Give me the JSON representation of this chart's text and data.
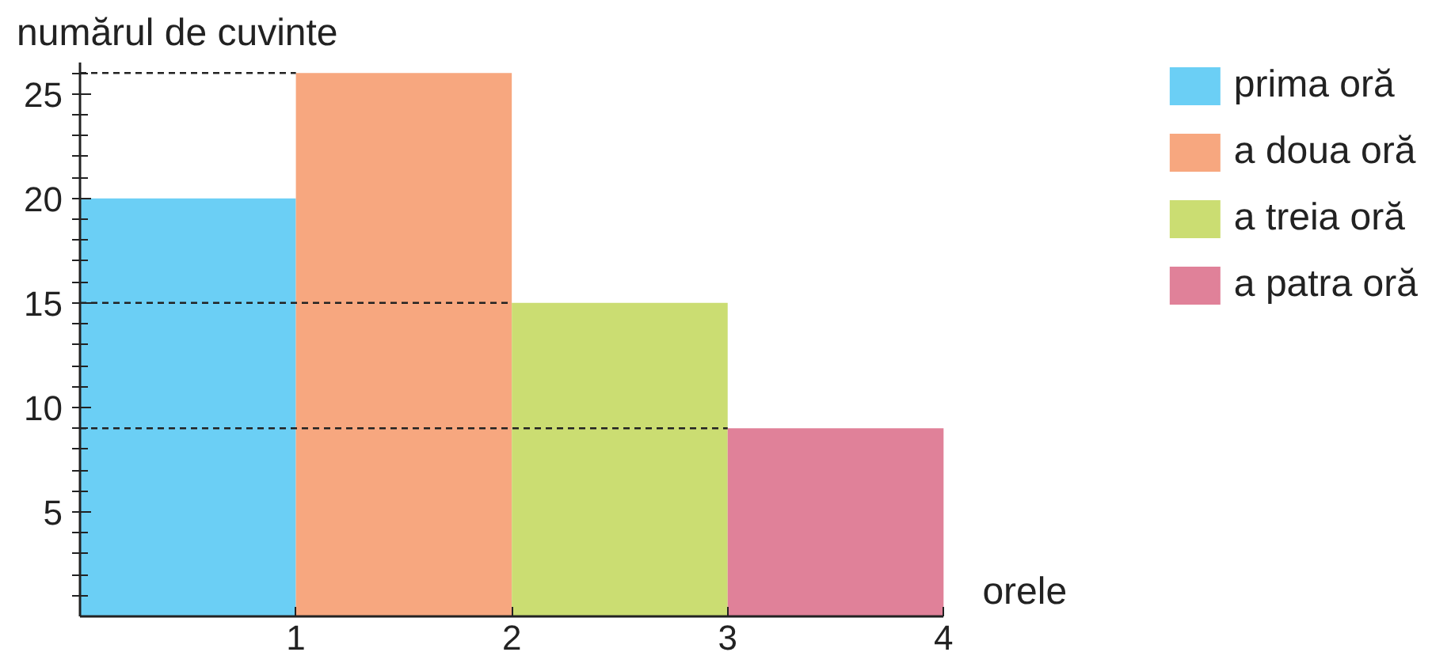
{
  "chart_data": {
    "type": "bar",
    "xlabel": "orele",
    "ylabel": "numărul de cuvinte",
    "x": [
      0.5,
      1.5,
      2.5,
      3.5
    ],
    "series": [
      {
        "name": "prima oră",
        "color": "#6bcff5",
        "values": [
          20,
          null,
          null,
          null
        ]
      },
      {
        "name": "a doua oră",
        "color": "#f7a77f",
        "values": [
          null,
          26,
          null,
          null
        ]
      },
      {
        "name": "a treia oră",
        "color": "#cbdd72",
        "values": [
          null,
          null,
          15,
          null
        ]
      },
      {
        "name": "a patra oră",
        "color": "#e08199",
        "values": [
          null,
          null,
          null,
          9
        ]
      }
    ],
    "xlim": [
      0,
      4
    ],
    "xticks": [
      1,
      2,
      3,
      4
    ],
    "ylim": [
      0,
      26.5
    ],
    "yticks": [
      {
        "value": 1,
        "label": null
      },
      {
        "value": 2,
        "label": null
      },
      {
        "value": 3,
        "label": null
      },
      {
        "value": 4,
        "label": null
      },
      5,
      {
        "value": 6,
        "label": null
      },
      {
        "value": 7,
        "label": null
      },
      {
        "value": 8,
        "label": null
      },
      {
        "value": 9,
        "label": null
      },
      10,
      {
        "value": 11,
        "label": null
      },
      {
        "value": 12,
        "label": null
      },
      {
        "value": 13,
        "label": null
      },
      {
        "value": 14,
        "label": null
      },
      15,
      {
        "value": 16,
        "label": null
      },
      {
        "value": 17,
        "label": null
      },
      {
        "value": 18,
        "label": null
      },
      {
        "value": 19,
        "label": null
      },
      20,
      {
        "value": 21,
        "label": null
      },
      {
        "value": 22,
        "label": null
      },
      {
        "value": 23,
        "label": null
      },
      {
        "value": 24,
        "label": null
      },
      25,
      {
        "value": 26,
        "label": null
      }
    ],
    "ref_lines": [
      {
        "axis": "y",
        "value": 26,
        "label": null,
        "line_style": "dashed",
        "color": "#222222"
      },
      {
        "axis": "y",
        "value": 15,
        "label": null,
        "line_style": "dashed",
        "color": "#222222"
      },
      {
        "axis": "y",
        "value": 9,
        "label": null,
        "line_style": "dashed",
        "color": "#222222"
      }
    ],
    "grid": false,
    "legend": "right"
  }
}
